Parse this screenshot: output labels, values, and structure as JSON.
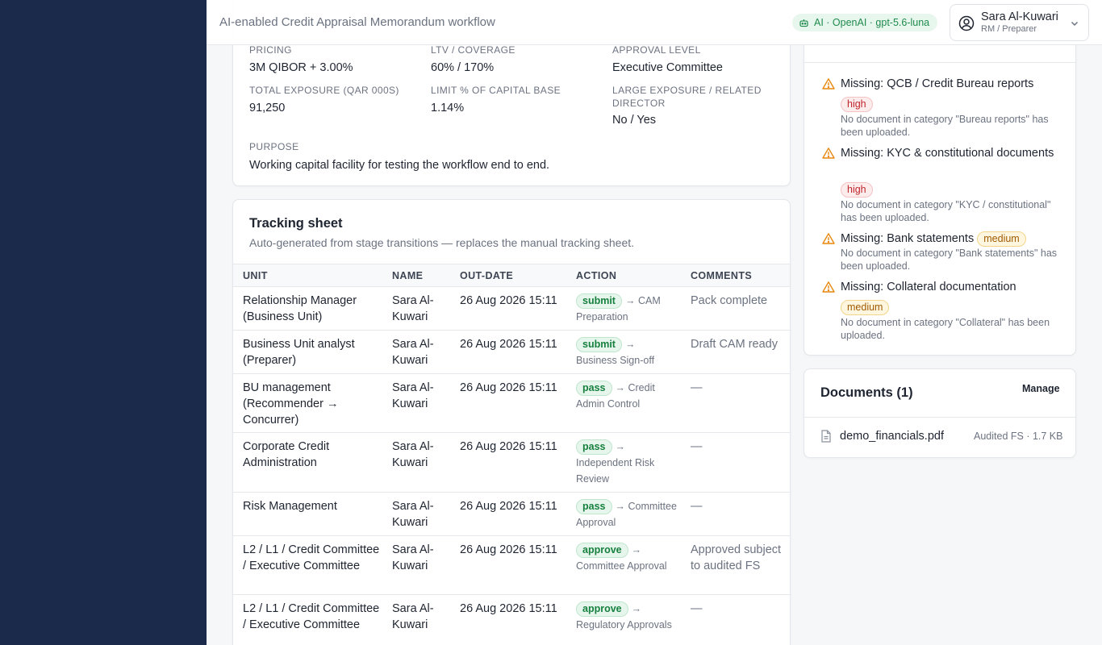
{
  "header": {
    "title": "AI-enabled Credit Appraisal Memorandum workflow",
    "ai_badge": "AI · OpenAI · gpt-5.6-luna",
    "user_name": "Sara Al-Kuwari",
    "user_role": "RM / Preparer"
  },
  "summary": {
    "pricing_label": "Pricing",
    "pricing_value": "3M QIBOR + 3.00%",
    "ltv_label": "LTV / Coverage",
    "ltv_value": "60% / 170%",
    "approval_label": "Approval level",
    "approval_value": "Executive Committee",
    "exposure_label": "Total exposure (QAR 000s)",
    "exposure_value": "91,250",
    "limit_label": "Limit % of capital base",
    "limit_value": "1.14%",
    "large_label_1": "Large exposure / related",
    "large_label_2": "director",
    "large_value": "No / Yes",
    "purpose_label": "Purpose",
    "purpose_value": "Working capital facility for testing the workflow end to end."
  },
  "tracking": {
    "title": "Tracking sheet",
    "subtitle": "Auto-generated from stage transitions — replaces the manual tracking sheet.",
    "columns": {
      "unit": "UNIT",
      "name": "NAME",
      "date": "OUT-DATE",
      "action": "ACTION",
      "comments": "COMMENTS"
    },
    "rows": [
      {
        "unit": "Relationship Manager (Business Unit)",
        "name": "Sara Al-Kuwari",
        "date": "26 Aug 2026 15:11",
        "action": "submit",
        "target": "→ CAM Preparation",
        "comment": "Pack complete"
      },
      {
        "unit": "Business Unit analyst (Preparer)",
        "name": "Sara Al-Kuwari",
        "date": "26 Aug 2026 15:11",
        "action": "submit",
        "target": "→ Business Sign-off",
        "comment": "Draft CAM ready"
      },
      {
        "unit": "BU management (Recommender → Concurrer)",
        "name": "Sara Al-Kuwari",
        "date": "26 Aug 2026 15:11",
        "action": "pass",
        "target": "→ Credit Admin Control",
        "comment": "—"
      },
      {
        "unit": "Corporate Credit Administration",
        "name": "Sara Al-Kuwari",
        "date": "26 Aug 2026 15:11",
        "action": "pass",
        "target": "→ Independent Risk Review",
        "comment": "—"
      },
      {
        "unit": "Risk Management",
        "name": "Sara Al-Kuwari",
        "date": "26 Aug 2026 15:11",
        "action": "pass",
        "target": "→ Committee Approval",
        "comment": "—"
      },
      {
        "unit": "L2 / L1 / Credit Committee / Executive Committee",
        "name": "Sara Al-Kuwari",
        "date": "26 Aug 2026 15:11",
        "action": "approve",
        "target": "→ Committee Approval",
        "comment": "Approved subject to audited FS"
      },
      {
        "unit": "L2 / L1 / Credit Committee / Executive Committee",
        "name": "Sara Al-Kuwari",
        "date": "26 Aug 2026 15:11",
        "action": "approve",
        "target": "→ Regulatory Approvals",
        "comment": "—"
      }
    ]
  },
  "issues": [
    {
      "title": "Missing: QCB / Credit Bureau reports",
      "severity": "high",
      "desc": "No document in category \"Bureau reports\" has been uploaded."
    },
    {
      "title": "Missing: KYC & constitutional documents",
      "severity": "high",
      "desc": "No document in category \"KYC / constitutional\" has been uploaded."
    },
    {
      "title": "Missing: Bank statements",
      "severity": "medium",
      "desc": "No document in category \"Bank statements\" has been uploaded."
    },
    {
      "title": "Missing: Collateral documentation",
      "severity": "medium",
      "desc": "No document in category \"Collateral\" has been uploaded."
    }
  ],
  "documents": {
    "title": "Documents (1)",
    "manage_label": "Manage",
    "files": [
      {
        "name": "demo_financials.pdf",
        "meta": "Audited FS · 1.7 KB"
      }
    ]
  },
  "colors": {
    "sidebar": "#1b2a4a",
    "accent_green": "#1f8a4c",
    "warning": "#e8870e"
  },
  "icons": [
    "bot-icon",
    "user-circle-icon",
    "chevron-down-icon",
    "warning-icon",
    "file-icon"
  ]
}
